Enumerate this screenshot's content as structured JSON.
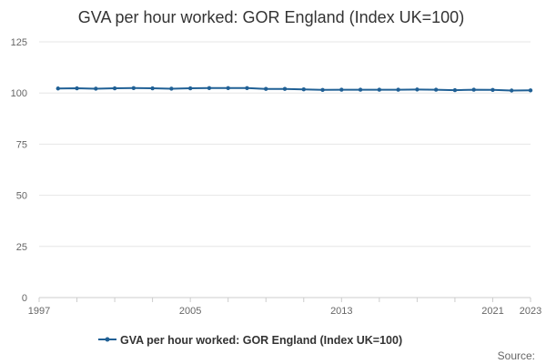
{
  "chart_data": {
    "type": "line",
    "title": "GVA per hour worked: GOR England (Index UK=100)",
    "xlabel": "",
    "ylabel": "",
    "x": [
      1998,
      1999,
      2000,
      2001,
      2002,
      2003,
      2004,
      2005,
      2006,
      2007,
      2008,
      2009,
      2010,
      2011,
      2012,
      2013,
      2014,
      2015,
      2016,
      2017,
      2018,
      2019,
      2020,
      2021,
      2022,
      2023
    ],
    "series": [
      {
        "name": "GVA per hour worked: GOR England (Index UK=100)",
        "color": "#206095",
        "values": [
          102.2,
          102.3,
          102.1,
          102.3,
          102.4,
          102.3,
          102.1,
          102.3,
          102.4,
          102.4,
          102.4,
          102.0,
          102.0,
          101.8,
          101.5,
          101.6,
          101.6,
          101.6,
          101.6,
          101.7,
          101.6,
          101.4,
          101.6,
          101.5,
          101.2,
          101.3
        ]
      }
    ],
    "xlim": [
      1997,
      2023
    ],
    "ylim": [
      0,
      125
    ],
    "y_ticks": [
      0,
      25,
      50,
      75,
      100,
      125
    ],
    "x_tick_labels": [
      "1997",
      "2005",
      "2013",
      "2021",
      "2023"
    ],
    "grid": true,
    "legend_position": "bottom-center"
  },
  "source_label": "Source:"
}
